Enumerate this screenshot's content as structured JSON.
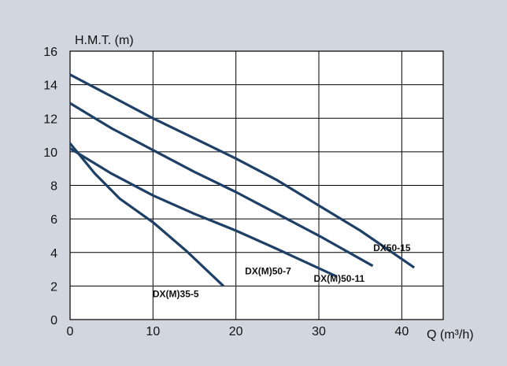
{
  "chart_data": {
    "type": "line",
    "ylabel": "H.M.T. (m)",
    "xlabel": "Q (m³/h)",
    "xlim": [
      0,
      45
    ],
    "ylim": [
      0,
      16
    ],
    "xticks": [
      0,
      10,
      20,
      30,
      40
    ],
    "yticks": [
      0,
      2,
      4,
      6,
      8,
      10,
      12,
      14,
      16
    ],
    "grid": true,
    "series": [
      {
        "name": "DX(M)35-5",
        "points": [
          [
            0,
            10.5
          ],
          [
            3,
            8.7
          ],
          [
            6,
            7.2
          ],
          [
            10,
            5.8
          ],
          [
            14,
            4.1
          ],
          [
            18.5,
            2.0
          ]
        ]
      },
      {
        "name": "DX(M)50-7",
        "points": [
          [
            0,
            10.2
          ],
          [
            5,
            8.7
          ],
          [
            10,
            7.4
          ],
          [
            15,
            6.3
          ],
          [
            20,
            5.3
          ],
          [
            25,
            4.2
          ],
          [
            32,
            2.6
          ]
        ]
      },
      {
        "name": "DX(M)50-11",
        "points": [
          [
            0,
            12.9
          ],
          [
            5,
            11.4
          ],
          [
            10,
            10.1
          ],
          [
            15,
            8.8
          ],
          [
            20,
            7.6
          ],
          [
            25,
            6.3
          ],
          [
            30,
            5.0
          ],
          [
            36.5,
            3.2
          ]
        ]
      },
      {
        "name": "DX50-15",
        "points": [
          [
            0,
            14.6
          ],
          [
            5,
            13.3
          ],
          [
            10,
            12.0
          ],
          [
            15,
            10.8
          ],
          [
            20,
            9.6
          ],
          [
            25,
            8.3
          ],
          [
            30,
            6.8
          ],
          [
            35,
            5.3
          ],
          [
            41.5,
            3.1
          ]
        ]
      }
    ]
  },
  "style": {
    "background": "#d2d6de",
    "plot_background": "#ffffff",
    "line_color": "#1e3f66",
    "grid_color": "#000000"
  }
}
